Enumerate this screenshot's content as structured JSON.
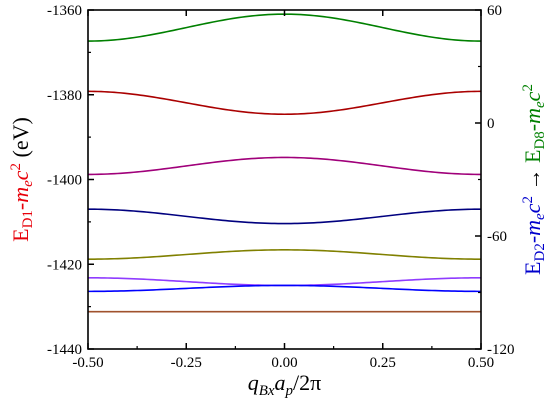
{
  "chart_data": {
    "type": "line",
    "x": {
      "range": [
        -0.5,
        0.5
      ],
      "ticks": [
        -0.5,
        -0.25,
        0.0,
        0.25,
        0.5
      ],
      "tick_labels": [
        "-0.50",
        "-0.25",
        "0.00",
        "0.25",
        "0.50"
      ],
      "label": {
        "q": "q",
        "q_sub": "Bx",
        "a": "a",
        "a_sub": "p",
        "tail": "/2π"
      }
    },
    "y_left": {
      "range": [
        -1440,
        -1360
      ],
      "ticks": [
        -1440,
        -1420,
        -1400,
        -1380,
        -1360
      ],
      "tick_labels": [
        "-1440",
        "-1420",
        "-1400",
        "-1380",
        "-1360"
      ],
      "label": {
        "E": "E",
        "E_sub": "D1",
        "minus": "-",
        "m": "m",
        "m_sub": "e",
        "c": "c",
        "sup": "2",
        "unit": " (eV)"
      },
      "label_color": "#e8000a"
    },
    "y_right": {
      "range": [
        -120,
        60
      ],
      "ticks": [
        -120,
        -60,
        0,
        60
      ],
      "tick_labels": [
        "-120",
        "-60",
        "0",
        "60"
      ],
      "label_part1": {
        "E": "E",
        "E_sub": "D2",
        "minus": "-",
        "m": "m",
        "m_sub": "e",
        "c": "c",
        "sup": "2"
      },
      "label_arrow": "→",
      "label_part2": {
        "E": "E",
        "E_sub": "D8",
        "minus": "-",
        "m": "m",
        "m_sub": "e",
        "c": "c",
        "sup": "2"
      },
      "label_color_part1": "#0000cc",
      "label_color_part2": "#008000"
    },
    "series": [
      {
        "color": "#008000",
        "axis": "right",
        "edge": 43.5,
        "center": 57.8,
        "width": 1.6
      },
      {
        "color": "#aa0000",
        "axis": "left",
        "edge": -1379.2,
        "center": -1384.6,
        "width": 1.6
      },
      {
        "color": "#a0007a",
        "axis": "left",
        "edge": -1398.8,
        "center": -1394.8,
        "width": 1.6
      },
      {
        "color": "#00007f",
        "axis": "left",
        "edge": -1407.0,
        "center": -1410.4,
        "width": 1.6
      },
      {
        "color": "#808000",
        "axis": "left",
        "edge": -1418.8,
        "center": -1416.6,
        "width": 1.6
      },
      {
        "color": "#8f3cff",
        "axis": "left",
        "edge": -1423.2,
        "center": -1425.0,
        "width": 1.6
      },
      {
        "color": "#0000ff",
        "axis": "left",
        "edge": -1426.4,
        "center": -1425.0,
        "width": 1.6
      },
      {
        "color": "#a0522d",
        "axis": "left",
        "edge": -1431.2,
        "center": -1431.2,
        "width": 1.6
      }
    ]
  }
}
